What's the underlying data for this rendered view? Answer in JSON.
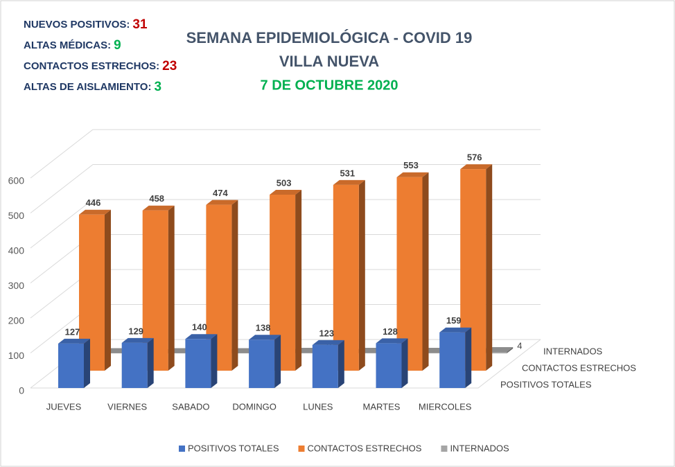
{
  "chart_data": {
    "type": "bar3d",
    "title": "SEMANA EPIDEMIOLÓGICA - COVID 19",
    "subtitle": "VILLA NUEVA",
    "date": "7 DE OCTUBRE 2020",
    "annotations": [
      {
        "label": "NUEVOS POSITIVOS:",
        "value": 31,
        "color": "#c00000"
      },
      {
        "label": "ALTAS MÉDICAS:",
        "value": 9,
        "color": "#00b050"
      },
      {
        "label": "CONTACTOS ESTRECHOS:",
        "value": 23,
        "color": "#c00000"
      },
      {
        "label": "ALTAS DE AISLAMIENTO:",
        "value": 3,
        "color": "#00b050"
      }
    ],
    "categories": [
      "JUEVES",
      "VIERNES",
      "SABADO",
      "DOMINGO",
      "LUNES",
      "MARTES",
      "MIERCOLES"
    ],
    "series": [
      {
        "name": "POSITIVOS TOTALES",
        "color": "#4472c4",
        "values": [
          127,
          129,
          140,
          138,
          123,
          128,
          159
        ]
      },
      {
        "name": "CONTACTOS ESTRECHOS",
        "color": "#ed7d31",
        "values": [
          446,
          458,
          474,
          503,
          531,
          553,
          576
        ]
      },
      {
        "name": "INTERNADOS",
        "color": "#a5a5a5",
        "values": [
          1,
          1,
          1,
          2,
          2,
          2,
          4
        ]
      }
    ],
    "ylim": [
      0,
      600
    ],
    "yticks": [
      0,
      100,
      200,
      300,
      400,
      500,
      600
    ],
    "grid": true
  }
}
